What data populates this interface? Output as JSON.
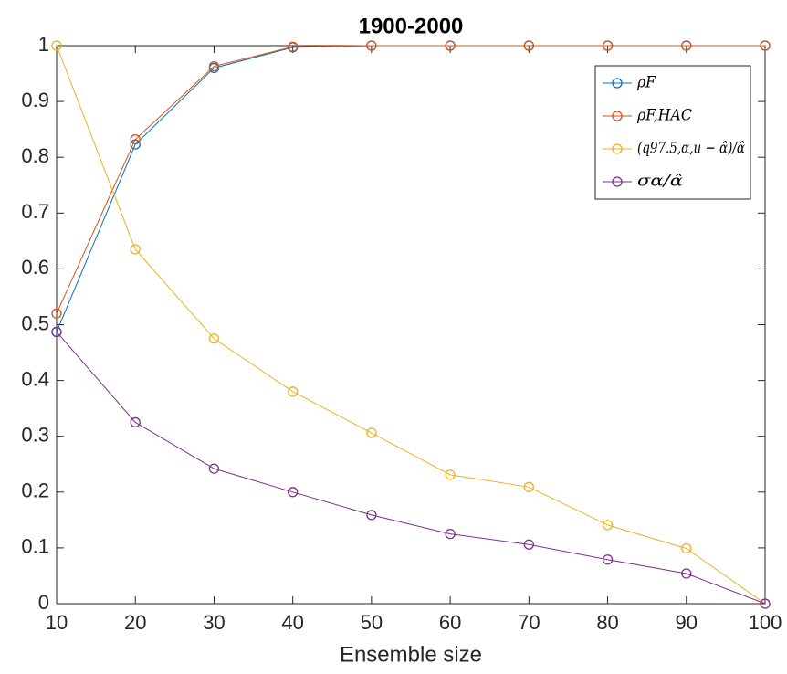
{
  "chart_data": {
    "type": "line",
    "title": "1900-2000",
    "x_label": "Ensemble size",
    "x": [
      10,
      20,
      30,
      40,
      50,
      60,
      70,
      80,
      90,
      100
    ],
    "series": [
      {
        "name": "ρF",
        "color": "#0072BD",
        "values": [
          0.487,
          0.823,
          0.96,
          0.997,
          1,
          1,
          1,
          1,
          1,
          1
        ]
      },
      {
        "name": "ρF,HAC",
        "color": "#D95319",
        "values": [
          0.52,
          0.832,
          0.963,
          0.998,
          1,
          1,
          1,
          1,
          1,
          1
        ]
      },
      {
        "name": "(q97.5,α,u − α̂)/α̂",
        "color": "#EDB120",
        "values": [
          1,
          0.635,
          0.475,
          0.38,
          0.306,
          0.231,
          0.209,
          0.141,
          0.099,
          0
        ]
      },
      {
        "name": "σα/α̂",
        "color": "#7E2F8E",
        "values": [
          0.487,
          0.325,
          0.242,
          0.2,
          0.159,
          0.125,
          0.106,
          0.079,
          0.054,
          0
        ]
      }
    ],
    "xlim": [
      10,
      100
    ],
    "xticks": [
      10,
      20,
      30,
      40,
      50,
      60,
      70,
      80,
      90,
      100
    ],
    "ylim": [
      0,
      1
    ],
    "yticks": [
      0,
      0.1,
      0.2,
      0.3,
      0.4,
      0.5,
      0.6,
      0.7,
      0.8,
      0.9,
      1
    ],
    "grid": false,
    "legend": "northeast"
  }
}
